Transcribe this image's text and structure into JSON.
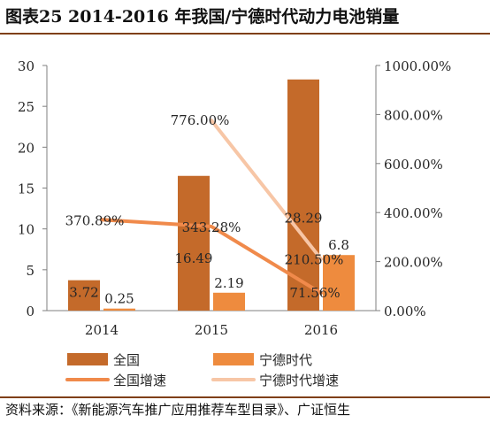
{
  "title": "图表25 2014-2016 年我国/宁德时代动力电池销量",
  "source": "资料来源：《新能源汽车推广应用推荐车型目录》、广证恒生",
  "chart_data": {
    "type": "bar",
    "categories": [
      "2014",
      "2015",
      "2016"
    ],
    "series": [
      {
        "name": "全国",
        "kind": "bar",
        "axis": "left",
        "color": "#c46a2a",
        "values": [
          3.72,
          16.49,
          28.29
        ],
        "labels": [
          "3.72",
          "16.49",
          "28.29"
        ]
      },
      {
        "name": "宁德时代",
        "kind": "bar",
        "axis": "left",
        "color": "#ee8b3e",
        "values": [
          0.25,
          2.19,
          6.8
        ],
        "labels": [
          "0.25",
          "2.19",
          "6.8"
        ]
      },
      {
        "name": "全国增速",
        "kind": "line",
        "axis": "right",
        "color": "#f08a4b",
        "values": [
          370.89,
          343.28,
          71.56
        ],
        "labels": [
          "370.89%",
          "343.28%",
          "71.56%"
        ]
      },
      {
        "name": "宁德时代增速",
        "kind": "line",
        "axis": "right",
        "color": "#f7c6a6",
        "values": [
          null,
          776.0,
          210.5
        ],
        "labels": [
          "",
          "776.00%",
          "210.50%"
        ]
      }
    ],
    "y_left": {
      "min": 0,
      "max": 30,
      "ticks": [
        "0",
        "5",
        "10",
        "15",
        "20",
        "25",
        "30"
      ]
    },
    "y_right": {
      "min": 0,
      "max": 1000,
      "ticks": [
        "0.00%",
        "200.00%",
        "400.00%",
        "600.00%",
        "800.00%",
        "1000.00%"
      ]
    },
    "grid": false,
    "legend_position": "bottom"
  }
}
